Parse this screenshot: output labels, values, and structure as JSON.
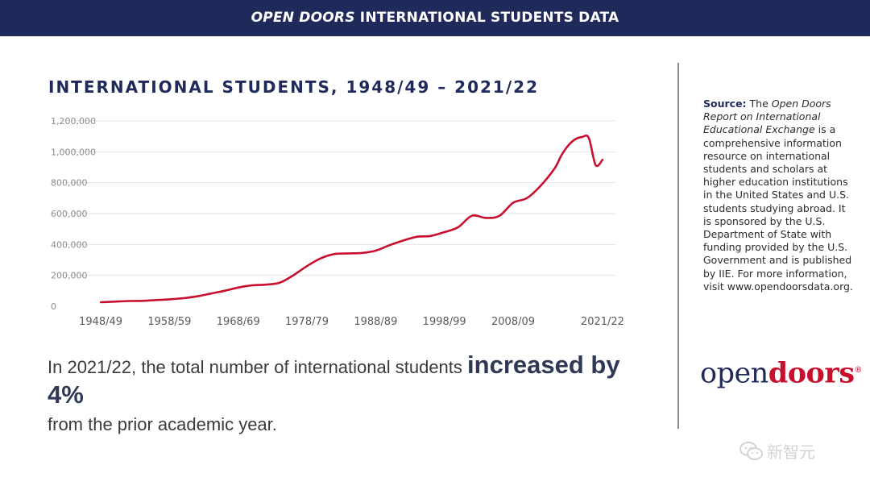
{
  "header": {
    "title_italic": "OPEN DOORS",
    "title_rest": " INTERNATIONAL STUDENTS DATA"
  },
  "chart_title": "INTERNATIONAL STUDENTS, 1948/49 – 2021/22",
  "chart_data": {
    "type": "line",
    "title": "INTERNATIONAL STUDENTS, 1948/49 – 2021/22",
    "xlabel": "",
    "ylabel": "",
    "ylim": [
      0,
      1200000
    ],
    "grid": true,
    "y_ticks": [
      "0",
      "200,000",
      "400,000",
      "600,000",
      "800,000",
      "1,000,000",
      "1,200,000"
    ],
    "x_tick_labels": [
      "1948/49",
      "1958/59",
      "1968/69",
      "1978/79",
      "1988/89",
      "1998/99",
      "2008/09",
      "2021/22"
    ],
    "x_tick_years": [
      1948,
      1958,
      1968,
      1978,
      1988,
      1998,
      2008,
      2021
    ],
    "line_color": "#c8102e",
    "series": [
      {
        "x": [
          1948,
          1950,
          1952,
          1954,
          1956,
          1958,
          1960,
          1962,
          1964,
          1966,
          1968,
          1970,
          1972,
          1974,
          1976,
          1978,
          1980,
          1982,
          1984,
          1986,
          1988,
          1990,
          1992,
          1994,
          1996,
          1998,
          2000,
          2002,
          2004,
          2006,
          2008,
          2010,
          2012,
          2014,
          2015,
          2016,
          2017,
          2018,
          2019,
          2020,
          2021
        ],
        "values": [
          26000,
          30000,
          34000,
          35000,
          40000,
          45000,
          52000,
          64000,
          82000,
          100000,
          121000,
          135000,
          140000,
          152000,
          200000,
          260000,
          310000,
          338000,
          342000,
          345000,
          360000,
          395000,
          425000,
          450000,
          455000,
          480000,
          512000,
          586000,
          572000,
          585000,
          670000,
          700000,
          780000,
          890000,
          975000,
          1040000,
          1080000,
          1095000,
          1090000,
          914000,
          948000
        ]
      }
    ]
  },
  "summary": {
    "before": "In 2021/22, the total number of international students ",
    "emphasis": "increased by 4%",
    "after": " from the prior academic year."
  },
  "source": {
    "label": "Source:",
    "text_1": " The ",
    "italic": "Open Doors Report on International Educational Exchange",
    "text_2": " is a comprehensive information resource on international students and scholars at higher education institutions in the United States and U.S. students studying abroad. It is sponsored by the U.S. Department of State with funding provided by the U.S. Government and is published by IIE. For more information, visit www.opendoorsdata.org."
  },
  "logo": {
    "open": "open",
    "doors": "doors",
    "reg": "®"
  },
  "watermark": {
    "text": "新智元",
    "icon": "wechat-icon"
  }
}
